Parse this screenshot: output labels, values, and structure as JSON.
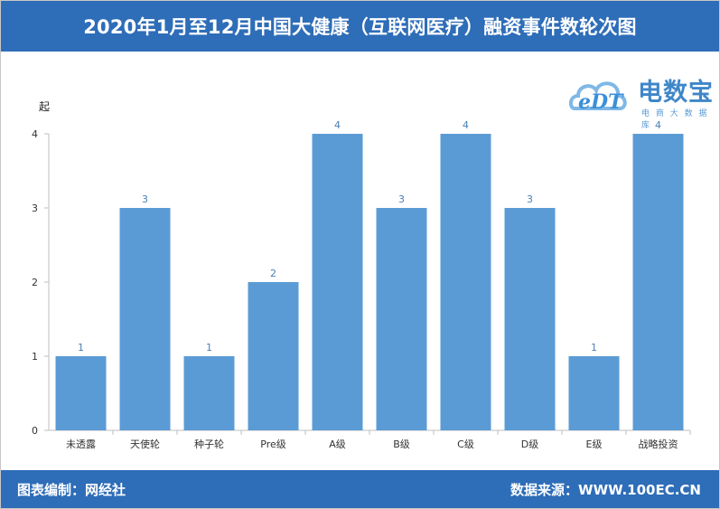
{
  "header": {
    "title": "2020年1月至12月中国大健康（互联网医疗）融资事件数轮次图"
  },
  "footer": {
    "left_text": "图表编制：网经社",
    "right_text": "数据来源：WWW.100EC.CN"
  },
  "logo": {
    "name": "电数宝",
    "sub": "电 商 大 数 据 库",
    "mark": "eDT"
  },
  "colors": {
    "header_bg": "#2e6db8",
    "bar": "#5b9bd5",
    "axis": "#bfbfbf",
    "label": "#4a7fb5"
  },
  "chart_data": {
    "type": "bar",
    "title": "2020年1月至12月中国大健康（互联网医疗）融资事件数轮次图",
    "ylabel": "起",
    "xlabel": "",
    "ylim": [
      0,
      4
    ],
    "yticks": [
      0,
      1,
      2,
      3,
      4
    ],
    "categories": [
      "未透露",
      "天使轮",
      "种子轮",
      "Pre级",
      "A级",
      "B级",
      "C级",
      "D级",
      "E级",
      "战略投资"
    ],
    "values": [
      1,
      3,
      1,
      2,
      4,
      3,
      4,
      3,
      1,
      4
    ],
    "data_labels": true,
    "grid": false,
    "legend": "none"
  }
}
